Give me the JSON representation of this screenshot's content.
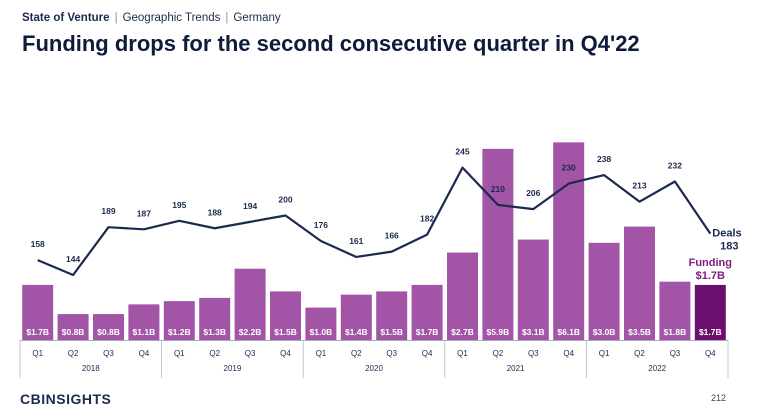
{
  "header": {
    "section": "State of Venture",
    "crumbs": [
      "Geographic Trends",
      "Germany"
    ],
    "title": "Funding drops for the second consecutive quarter in Q4'22"
  },
  "colors": {
    "bar": "#a255a6",
    "bar_highlight": "#6a0f6e",
    "line": "#1b2a4e",
    "funding_label": "#7b1e7f"
  },
  "chart_data": {
    "type": "bar",
    "title": "Funding drops for the second consecutive quarter in Q4'22",
    "categories": [
      "Q1",
      "Q2",
      "Q3",
      "Q4",
      "Q1",
      "Q2",
      "Q3",
      "Q4",
      "Q1",
      "Q2",
      "Q3",
      "Q4",
      "Q1",
      "Q2",
      "Q3",
      "Q4",
      "Q1",
      "Q2",
      "Q3",
      "Q4"
    ],
    "years": [
      {
        "label": "2018",
        "start": 0,
        "end": 3
      },
      {
        "label": "2019",
        "start": 4,
        "end": 7
      },
      {
        "label": "2020",
        "start": 8,
        "end": 11
      },
      {
        "label": "2021",
        "start": 12,
        "end": 15
      },
      {
        "label": "2022",
        "start": 16,
        "end": 19
      }
    ],
    "series": [
      {
        "name": "Funding",
        "type": "bar",
        "values": [
          1.7,
          0.8,
          0.8,
          1.1,
          1.2,
          1.3,
          2.2,
          1.5,
          1.0,
          1.4,
          1.5,
          1.7,
          2.7,
          5.9,
          3.1,
          6.1,
          3.0,
          3.5,
          1.8,
          1.7
        ],
        "labels": [
          "$1.7B",
          "$0.8B",
          "$0.8B",
          "$1.1B",
          "$1.2B",
          "$1.3B",
          "$2.2B",
          "$1.5B",
          "$1.0B",
          "$1.4B",
          "$1.5B",
          "$1.7B",
          "$2.7B",
          "$5.9B",
          "$3.1B",
          "$6.1B",
          "$3.0B",
          "$3.5B",
          "$1.8B",
          "$1.7B"
        ],
        "end_label": [
          "Funding",
          "$1.7B"
        ]
      },
      {
        "name": "Deals",
        "type": "line",
        "values": [
          158,
          144,
          189,
          187,
          195,
          188,
          194,
          200,
          176,
          161,
          166,
          182,
          245,
          210,
          206,
          230,
          238,
          213,
          232,
          183
        ],
        "end_label": [
          "Deals",
          "183"
        ]
      }
    ],
    "highlight_index": 19,
    "xlabel": "",
    "ylabel": ""
  },
  "footer": {
    "logo_prefix": "CB",
    "logo_word": "INSIGHTS",
    "page": "212"
  }
}
